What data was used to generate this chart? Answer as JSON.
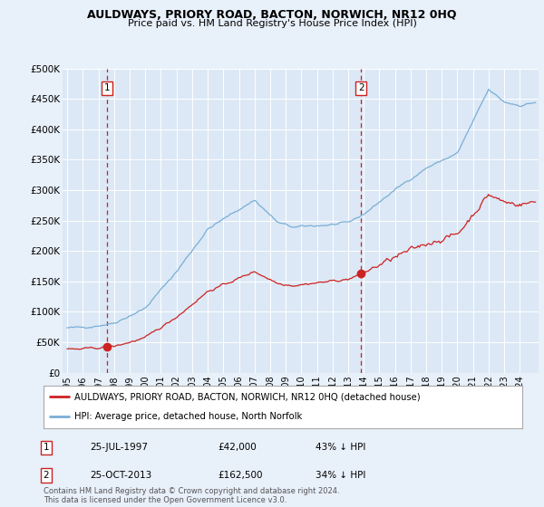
{
  "title": "AULDWAYS, PRIORY ROAD, BACTON, NORWICH, NR12 0HQ",
  "subtitle": "Price paid vs. HM Land Registry's House Price Index (HPI)",
  "background_color": "#e8f0fa",
  "plot_bg_color": "#dce8f5",
  "hpi_color": "#7aaed6",
  "price_color": "#cc2222",
  "sale1_date": 1997.57,
  "sale1_price": 42000,
  "sale2_date": 2013.82,
  "sale2_price": 162500,
  "ylim": [
    0,
    500000
  ],
  "yticks": [
    0,
    50000,
    100000,
    150000,
    200000,
    250000,
    300000,
    350000,
    400000,
    450000,
    500000
  ],
  "xlabel_years": [
    1995,
    1996,
    1997,
    1998,
    1999,
    2000,
    2001,
    2002,
    2003,
    2004,
    2005,
    2006,
    2007,
    2008,
    2009,
    2010,
    2011,
    2012,
    2013,
    2014,
    2015,
    2016,
    2017,
    2018,
    2019,
    2020,
    2021,
    2022,
    2023,
    2024
  ],
  "legend_label1": "AULDWAYS, PRIORY ROAD, BACTON, NORWICH, NR12 0HQ (detached house)",
  "legend_label2": "HPI: Average price, detached house, North Norfolk",
  "note1_label": "1",
  "note1_date": "25-JUL-1997",
  "note1_price": "£42,000",
  "note1_pct": "43% ↓ HPI",
  "note2_label": "2",
  "note2_date": "25-OCT-2013",
  "note2_price": "£162,500",
  "note2_pct": "34% ↓ HPI",
  "footer": "Contains HM Land Registry data © Crown copyright and database right 2024.\nThis data is licensed under the Open Government Licence v3.0."
}
